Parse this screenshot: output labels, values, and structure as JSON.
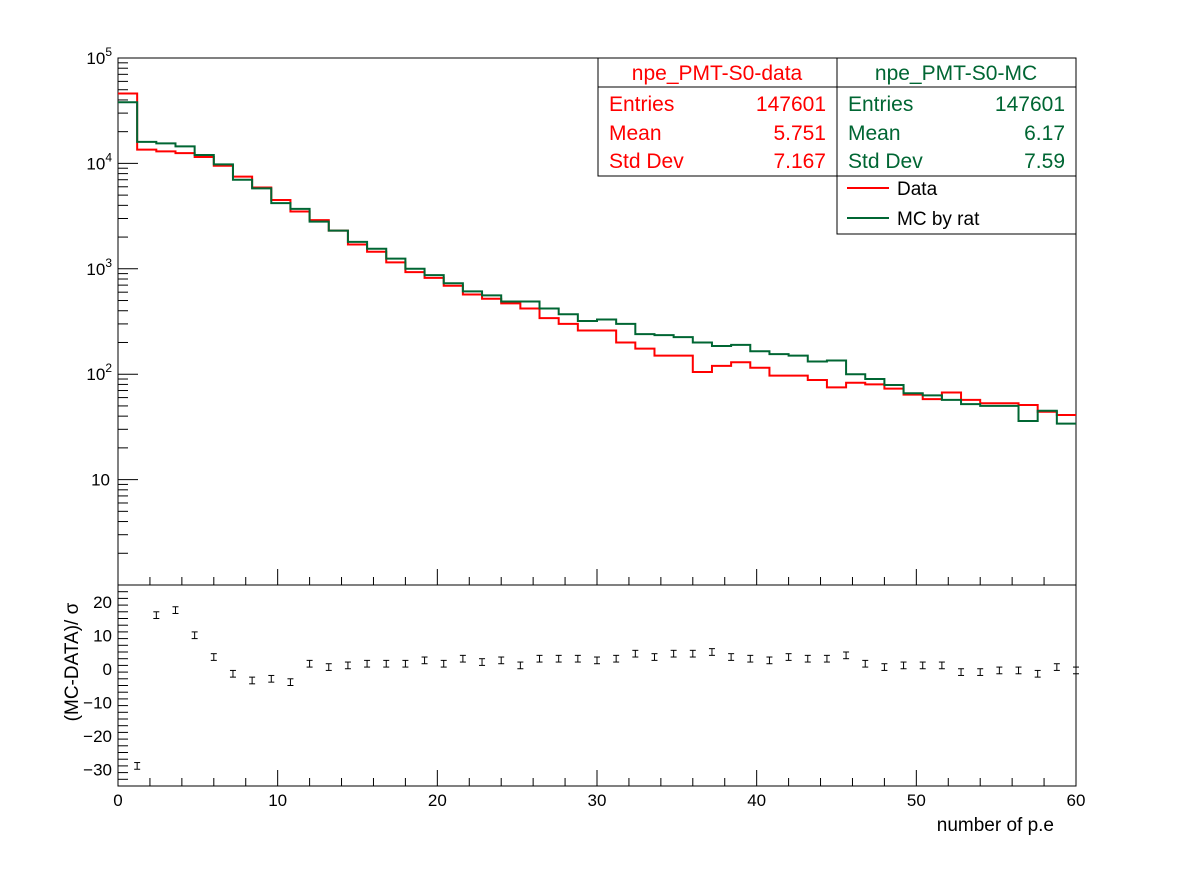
{
  "chart_data": [
    {
      "type": "histogram",
      "yscale": "log",
      "xlim": [
        0,
        60
      ],
      "ylim": [
        1,
        100000
      ],
      "bin_width": 1.2,
      "bin_edges_start": 0,
      "ytick_labels": [
        {
          "value": 10,
          "base": "10",
          "exp": ""
        },
        {
          "value": 100,
          "base": "10",
          "exp": "2"
        },
        {
          "value": 1000,
          "base": "10",
          "exp": "3"
        },
        {
          "value": 10000,
          "base": "10",
          "exp": "4"
        },
        {
          "value": 100000,
          "base": "10",
          "exp": "5"
        }
      ],
      "series": [
        {
          "name": "Data",
          "color": "#ff0000",
          "values": [
            46000,
            13500,
            13000,
            12500,
            11500,
            9500,
            7500,
            5900,
            4500,
            3500,
            2900,
            2300,
            1700,
            1450,
            1150,
            930,
            820,
            690,
            570,
            520,
            470,
            420,
            340,
            300,
            260,
            260,
            200,
            175,
            150,
            150,
            105,
            120,
            130,
            115,
            97,
            97,
            88,
            75,
            83,
            80,
            73,
            64,
            58,
            67,
            57,
            53,
            53,
            51,
            44,
            41
          ]
        },
        {
          "name": "MC by rat",
          "color": "#006633",
          "values": [
            38000,
            16000,
            15500,
            14500,
            12000,
            9800,
            7000,
            5800,
            4200,
            3700,
            2800,
            2300,
            1800,
            1550,
            1250,
            1000,
            870,
            730,
            610,
            560,
            490,
            490,
            420,
            370,
            320,
            330,
            300,
            240,
            235,
            225,
            200,
            185,
            190,
            165,
            155,
            150,
            132,
            135,
            100,
            90,
            79,
            66,
            63,
            57,
            52,
            50,
            50,
            36,
            45,
            34
          ]
        }
      ],
      "stats": [
        {
          "title": "npe_PMT-S0-data",
          "color": "#ff0000",
          "rows": [
            {
              "label": "Entries",
              "value": "147601"
            },
            {
              "label": "Mean",
              "value": "5.751"
            },
            {
              "label": "Std Dev",
              "value": "7.167"
            }
          ]
        },
        {
          "title": "npe_PMT-S0-MC",
          "color": "#006633",
          "rows": [
            {
              "label": "Entries",
              "value": "147601"
            },
            {
              "label": "Mean",
              "value": "6.17"
            },
            {
              "label": "Std Dev",
              "value": "7.59"
            }
          ]
        }
      ],
      "legend": {
        "position": "top-right",
        "entries": [
          "Data",
          "MC by rat"
        ]
      }
    },
    {
      "type": "scatter-errorbar",
      "ylabel": "(MC-DATA)/ σ",
      "xlabel": "number of p.e",
      "xlim": [
        0,
        60
      ],
      "ylim": [
        -35,
        25
      ],
      "xticks": [
        0,
        10,
        20,
        30,
        40,
        50,
        60
      ],
      "xtick_labels": [
        "0",
        "10",
        "20",
        "30",
        "40",
        "50",
        "60"
      ],
      "yticks": [
        -30,
        -20,
        -10,
        0,
        10,
        20
      ],
      "ytick_labels": [
        "−30",
        "−20",
        "−10",
        "0",
        "10",
        "20"
      ],
      "x": [
        1.2,
        2.4,
        3.6,
        4.8,
        6.0,
        7.2,
        8.4,
        9.6,
        10.8,
        12.0,
        13.2,
        14.4,
        15.6,
        16.8,
        18.0,
        19.2,
        20.4,
        21.6,
        22.8,
        24.0,
        25.2,
        26.4,
        27.6,
        28.8,
        30.0,
        31.2,
        32.4,
        33.6,
        34.8,
        36.0,
        37.2,
        38.4,
        39.6,
        40.8,
        42.0,
        43.2,
        44.4,
        45.6,
        46.8,
        48.0,
        49.2,
        50.4,
        51.6,
        52.8,
        54.0,
        55.2,
        56.4,
        57.6,
        58.8,
        60.0
      ],
      "y": [
        -29,
        16,
        17.5,
        10,
        3.5,
        -1.5,
        -3.5,
        -3,
        -4,
        1.5,
        0.5,
        1,
        1.5,
        1.5,
        1.5,
        2.5,
        1.5,
        3,
        2,
        2.5,
        1,
        3,
        3,
        3,
        2.5,
        3,
        4.5,
        3.5,
        4.5,
        4.5,
        5,
        3.5,
        3,
        2.5,
        3.5,
        3,
        3,
        4,
        1.5,
        0.5,
        1,
        1,
        1,
        -1,
        -1,
        -0.5,
        -0.5,
        -1.5,
        0.5,
        -0.5
      ],
      "err": [
        1,
        1,
        1,
        1,
        1,
        1,
        1,
        1,
        1,
        1,
        1,
        1,
        1,
        1,
        1,
        1,
        1,
        1,
        1,
        1,
        1,
        1,
        1,
        1,
        1,
        1,
        1,
        1,
        1,
        1,
        1,
        1,
        1,
        1,
        1,
        1,
        1,
        1,
        1,
        1,
        1,
        1,
        1,
        1,
        1,
        1,
        1,
        1,
        1,
        1
      ]
    }
  ]
}
